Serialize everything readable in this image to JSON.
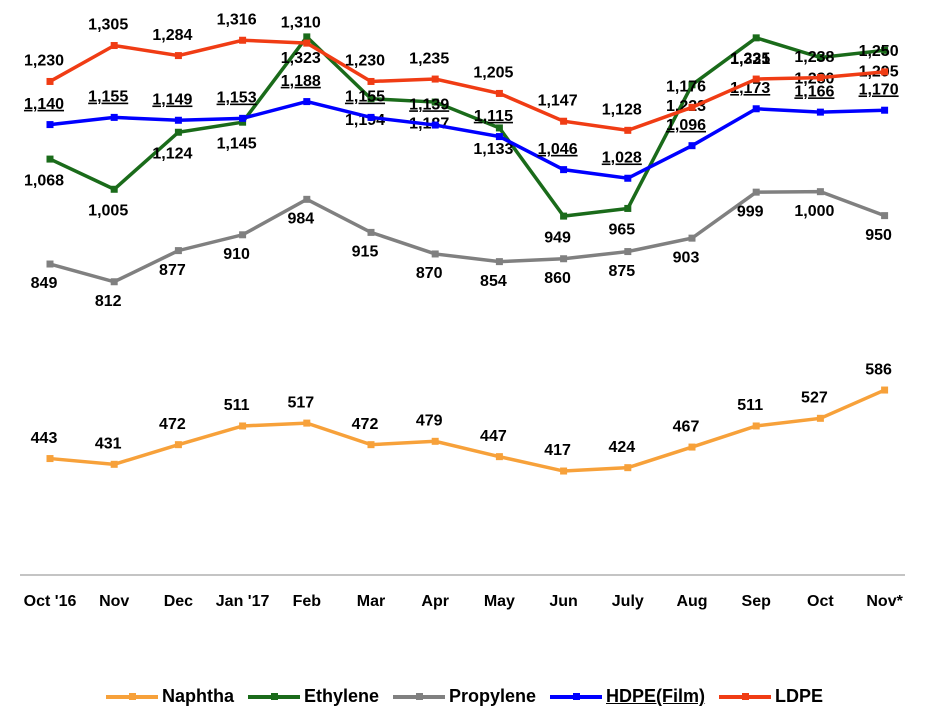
{
  "chart_data": {
    "type": "line",
    "categories": [
      "Oct '16",
      "Nov",
      "Dec",
      "Jan '17",
      "Feb",
      "Mar",
      "Apr",
      "May",
      "Jun",
      "July",
      "Aug",
      "Sep",
      "Oct",
      "Nov*"
    ],
    "ylim": [
      200,
      1400
    ],
    "series": [
      {
        "name": "Naphtha",
        "color": "#f7a13a",
        "values": [
          443,
          431,
          472,
          511,
          517,
          472,
          479,
          447,
          417,
          424,
          467,
          511,
          527,
          586
        ]
      },
      {
        "name": "Ethylene",
        "color": "#1a6b1a",
        "values": [
          1068,
          1005,
          1124,
          1145,
          1323,
          1194,
          1187,
          1133,
          949,
          965,
          1223,
          1321,
          1280,
          1295
        ],
        "value_labels": [
          "1,068",
          "1,005",
          "1,124",
          "1,145",
          "1,323",
          "1,194",
          "1,187",
          "1,133",
          "949",
          "965",
          "1,223",
          "1,321",
          "1,280",
          "1,295"
        ]
      },
      {
        "name": "Propylene",
        "color": "#808080",
        "values": [
          849,
          812,
          877,
          910,
          984,
          915,
          870,
          854,
          860,
          875,
          903,
          999,
          1000,
          950
        ],
        "value_labels": [
          "849",
          "812",
          "877",
          "910",
          "984",
          "915",
          "870",
          "854",
          "860",
          "875",
          "903",
          "999",
          "1,000",
          "950"
        ]
      },
      {
        "name": "HDPE(Film)",
        "color": "#0000ff",
        "values": [
          1140,
          1155,
          1149,
          1153,
          1188,
          1155,
          1139,
          1115,
          1046,
          1028,
          1096,
          1173,
          1166,
          1170
        ],
        "value_labels": [
          "1,140",
          "1,155",
          "1,149",
          "1,153",
          "1,188",
          "1,155",
          "1,139",
          "1,115",
          "1,046",
          "1,028",
          "1,096",
          "1,173",
          "1,166",
          "1,170"
        ]
      },
      {
        "name": "LDPE",
        "color": "#f03c14",
        "values": [
          1230,
          1305,
          1284,
          1316,
          1310,
          1230,
          1235,
          1205,
          1147,
          1128,
          1176,
          1235,
          1238,
          1250
        ],
        "value_labels": [
          "1,230",
          "1,305",
          "1,284",
          "1,316",
          "1,310",
          "1,230",
          "1,235",
          "1,205",
          "1,147",
          "1,128",
          "1,176",
          "1,235",
          "1,238",
          "1,250"
        ]
      }
    ]
  }
}
